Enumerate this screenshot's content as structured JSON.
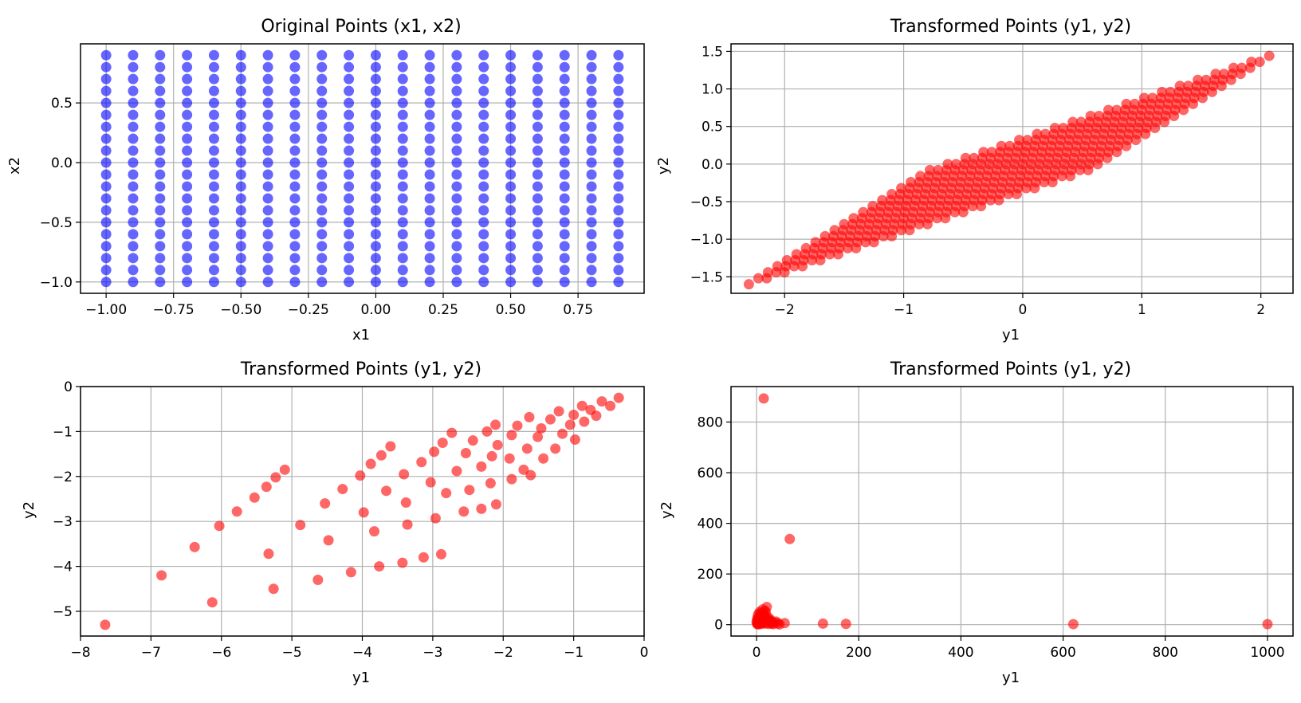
{
  "chart_data": [
    {
      "type": "scatter",
      "title": "Original Points (x1, x2)",
      "xlabel": "x1",
      "ylabel": "x2",
      "xlim": [
        -1.095,
        0.995
      ],
      "ylim": [
        -1.095,
        0.995
      ],
      "xticks": [
        -1.0,
        -0.75,
        -0.5,
        -0.25,
        0.0,
        0.25,
        0.5,
        0.75
      ],
      "xtick_labels": [
        "−1.00",
        "−0.75",
        "−0.50",
        "−0.25",
        "0.00",
        "0.25",
        "0.50",
        "0.75"
      ],
      "yticks": [
        -1.0,
        -0.5,
        0.0,
        0.5
      ],
      "ytick_labels": [
        "−1.0",
        "−0.5",
        "0.0",
        "0.5"
      ],
      "grid": true,
      "color": "#0000ff",
      "alpha": 0.6,
      "grid_points": {
        "x_start": -1.0,
        "x_stop": 0.9,
        "x_step": 0.1,
        "y_start": -1.0,
        "y_stop": 0.9,
        "y_step": 0.1
      }
    },
    {
      "type": "scatter",
      "title": "Transformed Points (y1, y2)",
      "xlabel": "y1",
      "ylabel": "y2",
      "xlim": [
        -2.45,
        2.27
      ],
      "ylim": [
        -1.72,
        1.6
      ],
      "xticks": [
        -2,
        -1,
        0,
        1,
        2
      ],
      "xtick_labels": [
        "−2",
        "−1",
        "0",
        "1",
        "2"
      ],
      "yticks": [
        -1.5,
        -1.0,
        -0.5,
        0.0,
        0.5,
        1.0,
        1.5
      ],
      "ytick_labels": [
        "−1.5",
        "−1.0",
        "−0.5",
        "0.0",
        "0.5",
        "1.0",
        "1.5"
      ],
      "grid": true,
      "color": "#ff0000",
      "alpha": 0.6,
      "transform": {
        "a11": 1.5,
        "a12": 0.8,
        "a21": 0.8,
        "a22": 0.8
      }
    },
    {
      "type": "scatter",
      "title": "Transformed Points (y1, y2)",
      "xlabel": "y1",
      "ylabel": "y2",
      "xlim": [
        -8,
        0
      ],
      "ylim": [
        -5.55,
        0
      ],
      "xticks": [
        -8,
        -7,
        -6,
        -5,
        -4,
        -3,
        -2,
        -1,
        0
      ],
      "xtick_labels": [
        "−8",
        "−7",
        "−6",
        "−5",
        "−4",
        "−3",
        "−2",
        "−1",
        "0"
      ],
      "yticks": [
        -5,
        -4,
        -3,
        -2,
        -1,
        0
      ],
      "ytick_labels": [
        "−5",
        "−4",
        "−3",
        "−2",
        "−1",
        "0"
      ],
      "grid": true,
      "color": "#ff0000",
      "alpha": 0.6,
      "points": [
        [
          -7.65,
          -5.3
        ],
        [
          -6.85,
          -4.2
        ],
        [
          -6.38,
          -3.57
        ],
        [
          -6.13,
          -4.8
        ],
        [
          -6.03,
          -3.1
        ],
        [
          -5.78,
          -2.78
        ],
        [
          -5.53,
          -2.47
        ],
        [
          -5.36,
          -2.23
        ],
        [
          -5.33,
          -3.72
        ],
        [
          -5.26,
          -4.5
        ],
        [
          -5.23,
          -2.02
        ],
        [
          -5.1,
          -1.85
        ],
        [
          -4.88,
          -3.08
        ],
        [
          -4.63,
          -4.3
        ],
        [
          -4.53,
          -2.6
        ],
        [
          -4.48,
          -3.42
        ],
        [
          -4.28,
          -2.28
        ],
        [
          -4.16,
          -4.13
        ],
        [
          -4.03,
          -1.98
        ],
        [
          -3.98,
          -2.8
        ],
        [
          -3.88,
          -1.72
        ],
        [
          -3.83,
          -3.22
        ],
        [
          -3.76,
          -4.0
        ],
        [
          -3.73,
          -1.53
        ],
        [
          -3.66,
          -2.32
        ],
        [
          -3.6,
          -1.33
        ],
        [
          -3.43,
          -3.92
        ],
        [
          -3.41,
          -1.95
        ],
        [
          -3.38,
          -2.58
        ],
        [
          -3.36,
          -3.07
        ],
        [
          -3.16,
          -1.68
        ],
        [
          -3.13,
          -3.8
        ],
        [
          -3.03,
          -2.13
        ],
        [
          -2.98,
          -1.45
        ],
        [
          -2.96,
          -2.93
        ],
        [
          -2.88,
          -3.73
        ],
        [
          -2.86,
          -1.25
        ],
        [
          -2.81,
          -2.37
        ],
        [
          -2.73,
          -1.03
        ],
        [
          -2.66,
          -1.88
        ],
        [
          -2.56,
          -2.78
        ],
        [
          -2.53,
          -1.48
        ],
        [
          -2.48,
          -2.3
        ],
        [
          -2.43,
          -1.2
        ],
        [
          -2.31,
          -1.78
        ],
        [
          -2.31,
          -2.72
        ],
        [
          -2.23,
          -1.0
        ],
        [
          -2.18,
          -2.15
        ],
        [
          -2.16,
          -1.55
        ],
        [
          -2.11,
          -0.85
        ],
        [
          -2.1,
          -2.62
        ],
        [
          -2.08,
          -1.3
        ],
        [
          -1.91,
          -1.6
        ],
        [
          -1.88,
          -2.06
        ],
        [
          -1.88,
          -1.08
        ],
        [
          -1.8,
          -0.87
        ],
        [
          -1.71,
          -1.85
        ],
        [
          -1.66,
          -1.38
        ],
        [
          -1.63,
          -0.68
        ],
        [
          -1.61,
          -1.97
        ],
        [
          -1.51,
          -1.12
        ],
        [
          -1.46,
          -0.93
        ],
        [
          -1.43,
          -1.6
        ],
        [
          -1.33,
          -0.73
        ],
        [
          -1.26,
          -1.38
        ],
        [
          -1.21,
          -0.55
        ],
        [
          -1.16,
          -1.05
        ],
        [
          -1.05,
          -0.85
        ],
        [
          -1.0,
          -0.63
        ],
        [
          -0.98,
          -1.18
        ],
        [
          -0.88,
          -0.43
        ],
        [
          -0.85,
          -0.78
        ],
        [
          -0.76,
          -0.52
        ],
        [
          -0.68,
          -0.65
        ],
        [
          -0.6,
          -0.33
        ],
        [
          -0.48,
          -0.43
        ],
        [
          -0.36,
          -0.25
        ]
      ]
    },
    {
      "type": "scatter",
      "title": "Transformed Points (y1, y2)",
      "xlabel": "y1",
      "ylabel": "y2",
      "xlim": [
        -50,
        1050
      ],
      "ylim": [
        -45,
        940
      ],
      "xticks": [
        0,
        200,
        400,
        600,
        800,
        1000
      ],
      "xtick_labels": [
        "0",
        "200",
        "400",
        "600",
        "800",
        "1000"
      ],
      "yticks": [
        0,
        200,
        400,
        600,
        800
      ],
      "ytick_labels": [
        "0",
        "200",
        "400",
        "600",
        "800"
      ],
      "grid": true,
      "color": "#ff0000",
      "alpha": 0.6,
      "points": [
        [
          14,
          893
        ],
        [
          65,
          338
        ],
        [
          1000,
          2
        ],
        [
          620,
          2
        ],
        [
          175,
          3
        ],
        [
          130,
          4
        ],
        [
          55,
          6
        ],
        [
          42,
          5
        ],
        [
          35,
          8
        ],
        [
          30,
          4
        ],
        [
          25,
          12
        ],
        [
          20,
          70
        ],
        [
          18,
          50
        ],
        [
          15,
          40
        ],
        [
          12,
          35
        ],
        [
          10,
          25
        ],
        [
          8,
          45
        ],
        [
          6,
          30
        ],
        [
          5,
          15
        ],
        [
          4,
          8
        ],
        [
          3,
          3
        ],
        [
          2,
          1
        ],
        [
          1,
          20
        ],
        [
          0,
          10
        ],
        [
          22,
          30
        ],
        [
          26,
          22
        ],
        [
          28,
          15
        ],
        [
          16,
          55
        ],
        [
          11,
          18
        ],
        [
          9,
          6
        ],
        [
          7,
          2
        ],
        [
          13,
          9
        ],
        [
          19,
          5
        ],
        [
          24,
          3
        ],
        [
          33,
          2
        ],
        [
          45,
          1
        ],
        [
          3,
          40
        ],
        [
          2,
          28
        ],
        [
          1,
          5
        ],
        [
          6,
          50
        ],
        [
          17,
          28
        ],
        [
          21,
          20
        ],
        [
          29,
          8
        ],
        [
          38,
          12
        ],
        [
          12,
          60
        ],
        [
          9,
          38
        ],
        [
          4,
          22
        ],
        [
          14,
          4
        ]
      ]
    }
  ]
}
